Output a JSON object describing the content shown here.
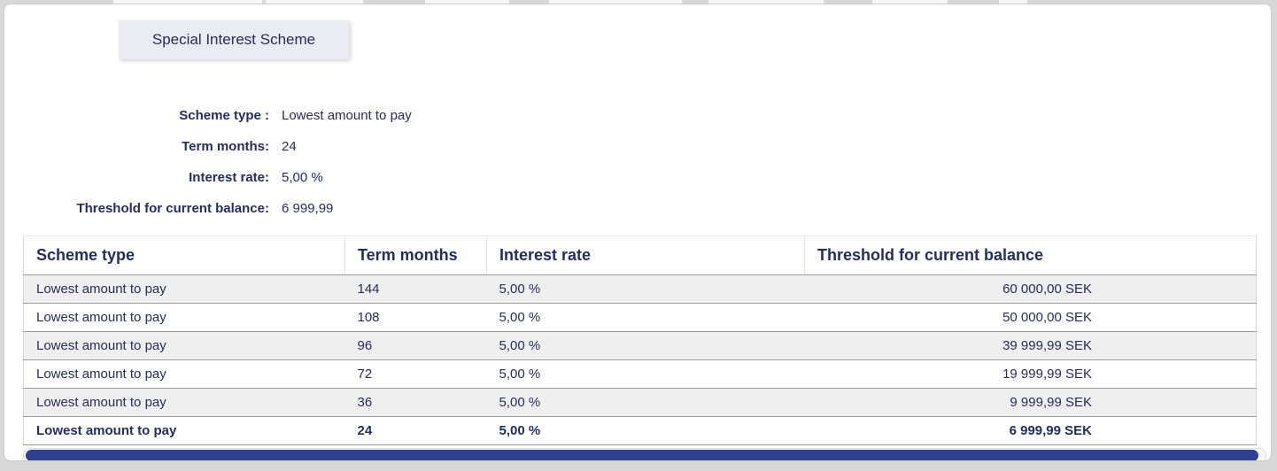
{
  "tab": {
    "label": "Special Interest Scheme"
  },
  "details": {
    "fields": [
      {
        "label": "Scheme type :",
        "value": "Lowest amount to pay"
      },
      {
        "label": "Term months:",
        "value": "24"
      },
      {
        "label": "Interest rate:",
        "value": "5,00 %"
      },
      {
        "label": "Threshold for current balance:",
        "value": "6 999,99"
      }
    ]
  },
  "table": {
    "columns": [
      "Scheme type",
      "Term months",
      "Interest rate",
      "Threshold for current balance"
    ],
    "rows": [
      {
        "cells": [
          "Lowest amount to pay",
          "144",
          "5,00 %",
          "60 000,00 SEK"
        ],
        "selected": false
      },
      {
        "cells": [
          "Lowest amount to pay",
          "108",
          "5,00 %",
          "50 000,00 SEK"
        ],
        "selected": false
      },
      {
        "cells": [
          "Lowest amount to pay",
          "96",
          "5,00 %",
          "39 999,99 SEK"
        ],
        "selected": false
      },
      {
        "cells": [
          "Lowest amount to pay",
          "72",
          "5,00 %",
          "19 999,99 SEK"
        ],
        "selected": false
      },
      {
        "cells": [
          "Lowest amount to pay",
          "36",
          "5,00 %",
          "9 999,99 SEK"
        ],
        "selected": false
      },
      {
        "cells": [
          "Lowest amount to pay",
          "24",
          "5,00 %",
          "6 999,99 SEK"
        ],
        "selected": true
      }
    ]
  },
  "colors": {
    "text_navy": "#262d60",
    "tab_background": "#ebebf4",
    "row_stripe": "#efefef",
    "scrollbar_thumb": "#2e4190",
    "page_background": "#d8d8d8"
  }
}
